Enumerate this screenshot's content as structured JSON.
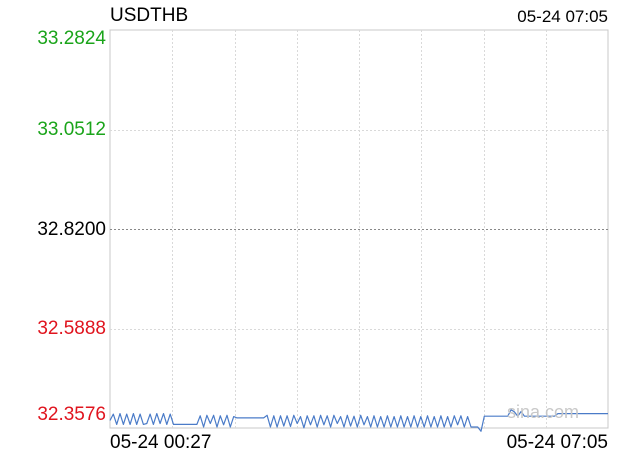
{
  "header": {
    "symbol": "USDTHB",
    "datetime": "05-24 07:05"
  },
  "watermark": "sina.com",
  "colors": {
    "line": "#4a7bc8",
    "up": "#1aa41a",
    "neutral": "#000000",
    "down": "#e0141e",
    "grid": "#d9d9d9",
    "frame": "#c8c8c8"
  },
  "chart_data": {
    "type": "line",
    "title": "USDTHB",
    "grid": true,
    "yticks": [
      "33.2824",
      "33.0512",
      "32.8200",
      "32.5888",
      "32.3576"
    ],
    "ylim": [
      32.3576,
      33.2824
    ],
    "reference": 32.82,
    "xlabels": [
      "05-24 00:27",
      "05-24 07:05"
    ],
    "series": [
      {
        "values": [
          32.375,
          32.39,
          32.366,
          32.391,
          32.366,
          32.39,
          32.366,
          32.391,
          32.366,
          32.39,
          32.366,
          32.368,
          32.39,
          32.366,
          32.391,
          32.368,
          32.391,
          32.366,
          32.39,
          32.366,
          32.366,
          32.366,
          32.366,
          32.366,
          32.366,
          32.366,
          32.366,
          32.386,
          32.36,
          32.387,
          32.368,
          32.387,
          32.36,
          32.386,
          32.365,
          32.387,
          32.36,
          32.384,
          32.381,
          32.381,
          32.381,
          32.381,
          32.381,
          32.381,
          32.381,
          32.381,
          32.381,
          32.387,
          32.36,
          32.386,
          32.36,
          32.386,
          32.362,
          32.386,
          32.361,
          32.387,
          32.368,
          32.384,
          32.358,
          32.386,
          32.365,
          32.386,
          32.36,
          32.387,
          32.365,
          32.386,
          32.36,
          32.387,
          32.368,
          32.384,
          32.36,
          32.387,
          32.362,
          32.385,
          32.36,
          32.387,
          32.365,
          32.384,
          32.36,
          32.386,
          32.36,
          32.384,
          32.36,
          32.386,
          32.36,
          32.384,
          32.36,
          32.386,
          32.36,
          32.384,
          32.36,
          32.386,
          32.36,
          32.384,
          32.36,
          32.386,
          32.36,
          32.384,
          32.36,
          32.386,
          32.36,
          32.384,
          32.36,
          32.386,
          32.365,
          32.386,
          32.36,
          32.384,
          32.36,
          32.36,
          32.36,
          32.35,
          32.385,
          32.385,
          32.385,
          32.385,
          32.385,
          32.385,
          32.385,
          32.385,
          32.4,
          32.395,
          32.385,
          32.396,
          32.385,
          32.385,
          32.385,
          32.385,
          32.385,
          32.385,
          32.385,
          32.385,
          32.385,
          32.385,
          32.391,
          32.391,
          32.391,
          32.391,
          32.391,
          32.391,
          32.391,
          32.391,
          32.391,
          32.391,
          32.391,
          32.391,
          32.391,
          32.391,
          32.391,
          32.391
        ]
      }
    ]
  }
}
